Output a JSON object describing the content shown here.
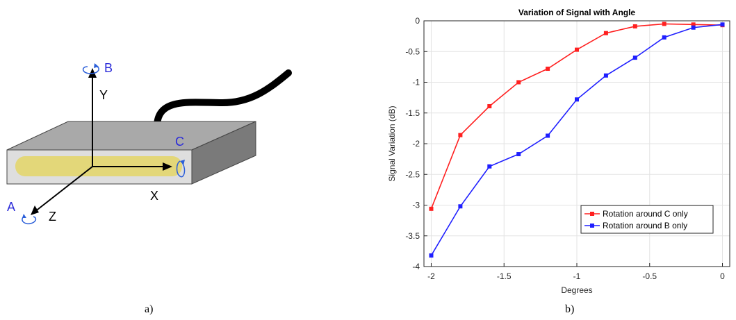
{
  "diagram": {
    "labels": {
      "x": "X",
      "y": "Y",
      "z": "Z",
      "a": "A",
      "b": "B",
      "c": "C"
    }
  },
  "captions": {
    "a": "a)",
    "b": "b)"
  },
  "colors": {
    "red": "#ff2020",
    "blue": "#1f1fff",
    "cylinder": "#e3d779",
    "box_top": "#a9a9a9",
    "box_side": "#7a7a7a",
    "box_front": "#dedede"
  },
  "chart_data": {
    "type": "line",
    "title": "Variation of Signal with Angle",
    "xlabel": "Degrees",
    "ylabel": "Signal Variation (dB)",
    "xlim": [
      -2.05,
      0.05
    ],
    "ylim": [
      -4,
      0
    ],
    "xticks": [
      -2,
      -1.5,
      -1,
      -0.5,
      0
    ],
    "xtick_labels": [
      "-2",
      "-1.5",
      "-1",
      "-0.5",
      "0"
    ],
    "yticks": [
      0,
      -0.5,
      -1,
      -1.5,
      -2,
      -2.5,
      -3,
      -3.5,
      -4
    ],
    "ytick_labels": [
      "0",
      "-0.5",
      "-1",
      "-1.5",
      "-2",
      "-2.5",
      "-3",
      "-3.5",
      "-4"
    ],
    "grid": true,
    "legend_position": "lower-right",
    "series": [
      {
        "name": "Rotation around C only",
        "color": "#ff2020",
        "x": [
          -2,
          -1.8,
          -1.6,
          -1.4,
          -1.2,
          -1.0,
          -0.8,
          -0.6,
          -0.4,
          -0.2,
          0
        ],
        "y": [
          -3.06,
          -1.86,
          -1.39,
          -1.0,
          -0.78,
          -0.47,
          -0.2,
          -0.09,
          -0.05,
          -0.06,
          -0.07
        ]
      },
      {
        "name": "Rotation around B only",
        "color": "#1f1fff",
        "x": [
          -2,
          -1.8,
          -1.6,
          -1.4,
          -1.2,
          -1.0,
          -0.8,
          -0.6,
          -0.4,
          -0.2,
          0
        ],
        "y": [
          -3.82,
          -3.02,
          -2.37,
          -2.17,
          -1.87,
          -1.28,
          -0.89,
          -0.6,
          -0.27,
          -0.11,
          -0.06
        ]
      }
    ]
  }
}
